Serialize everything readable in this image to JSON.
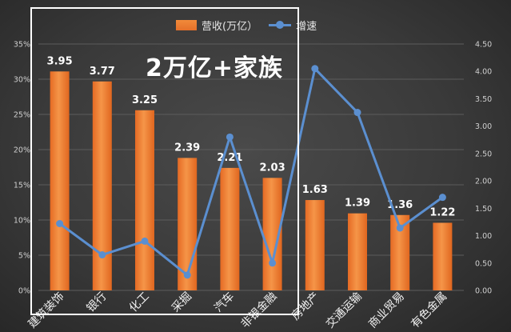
{
  "annotation": {
    "text": "2万亿+家族"
  },
  "legend": {
    "bar_label": "营收(万亿）",
    "line_label": "增速"
  },
  "chart_data": {
    "type": "bar",
    "categories": [
      "建筑装饰",
      "银行",
      "化工",
      "采掘",
      "汽车",
      "非银金融",
      "房地产",
      "交通运输",
      "商业贸易",
      "有色金属"
    ],
    "series": [
      {
        "name": "营收(万亿）",
        "type": "bar",
        "axis": "left",
        "values": [
          3.95,
          3.77,
          3.25,
          2.39,
          2.21,
          2.03,
          1.63,
          1.39,
          1.36,
          1.22
        ],
        "data_labels": [
          "3.95",
          "3.77",
          "3.25",
          "2.39",
          "2.21",
          "2.03",
          "1.63",
          "1.39",
          "1.36",
          "1.22"
        ]
      },
      {
        "name": "增速",
        "type": "line",
        "axis": "right",
        "values": [
          1.22,
          0.65,
          0.9,
          0.28,
          2.8,
          0.5,
          4.05,
          3.25,
          1.14,
          1.7
        ]
      }
    ],
    "y_left": {
      "ticks": [
        "0%",
        "5%",
        "10%",
        "15%",
        "20%",
        "25%",
        "30%",
        "35%"
      ],
      "range": [
        0,
        0.35
      ]
    },
    "y_right": {
      "ticks": [
        "0.00",
        "0.50",
        "1.00",
        "1.50",
        "2.00",
        "2.50",
        "3.00",
        "3.50",
        "4.00",
        "4.50"
      ],
      "range": [
        0,
        4.5
      ]
    },
    "grid": true,
    "legend_position": "top",
    "colors": {
      "bar": "#ef7e32",
      "line": "#5b8fd0",
      "grid": "#5c5c5c",
      "text": "#e6e6e6"
    }
  }
}
